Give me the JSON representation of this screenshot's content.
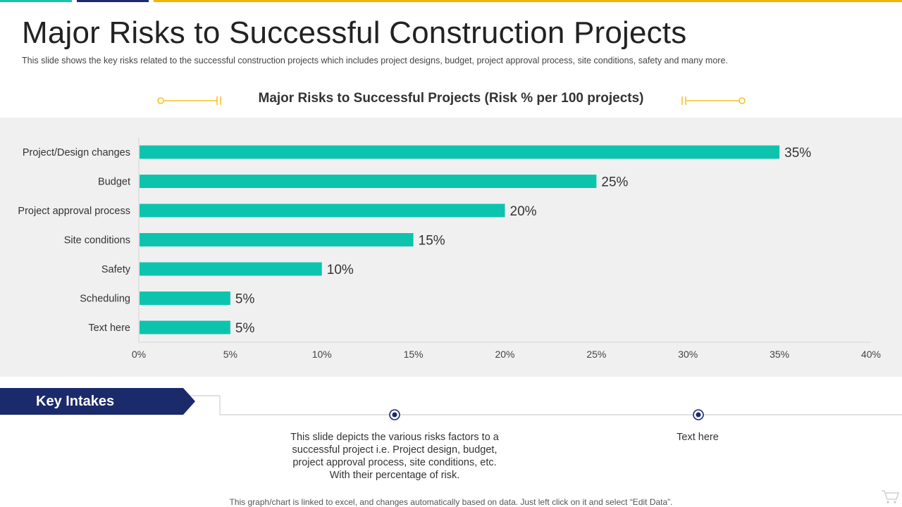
{
  "slide": {
    "title": "Major Risks to Successful Construction Projects",
    "subtitle": "This slide shows the key risks related to the successful construction projects which includes project designs, budget, project approval  process, site conditions, safety and many more.",
    "footnote": "This graph/chart is linked to excel,  and changes automatically based on data. Just left click on it and select “Edit Data”."
  },
  "colors": {
    "bar": "#0cc4ae",
    "navy": "#1b2a6b",
    "gold": "#f4b400",
    "teal_accent": "#14c3b0",
    "panel": "#f0f0f0"
  },
  "chart_data": {
    "type": "bar",
    "orientation": "horizontal",
    "title": "Major Risks to Successful Projects (Risk % per 100 projects)",
    "categories": [
      "Project/Design changes",
      "Budget",
      "Project approval process",
      "Site conditions",
      "Safety",
      "Scheduling",
      "Text here"
    ],
    "values": [
      35,
      25,
      20,
      15,
      10,
      5,
      5
    ],
    "value_labels": [
      "35%",
      "25%",
      "20%",
      "15%",
      "10%",
      "5%",
      "5%"
    ],
    "xlim": [
      0,
      40
    ],
    "xticks": [
      0,
      5,
      10,
      15,
      20,
      25,
      30,
      35,
      40
    ],
    "xtick_labels": [
      "0%",
      "5%",
      "10%",
      "15%",
      "20%",
      "25%",
      "30%",
      "35%",
      "40%"
    ],
    "xlabel": "",
    "ylabel": "",
    "grid": false
  },
  "key_intakes": {
    "label": "Key Intakes",
    "items": [
      {
        "text": "This slide depicts the various risks factors to a successful project i.e. Project design, budget, project approval process, site conditions, etc. With their percentage of risk."
      },
      {
        "text": "Text here"
      }
    ]
  },
  "icons": {
    "cart": "shopping-cart-icon",
    "timeline_dot": "target-dot-icon"
  }
}
